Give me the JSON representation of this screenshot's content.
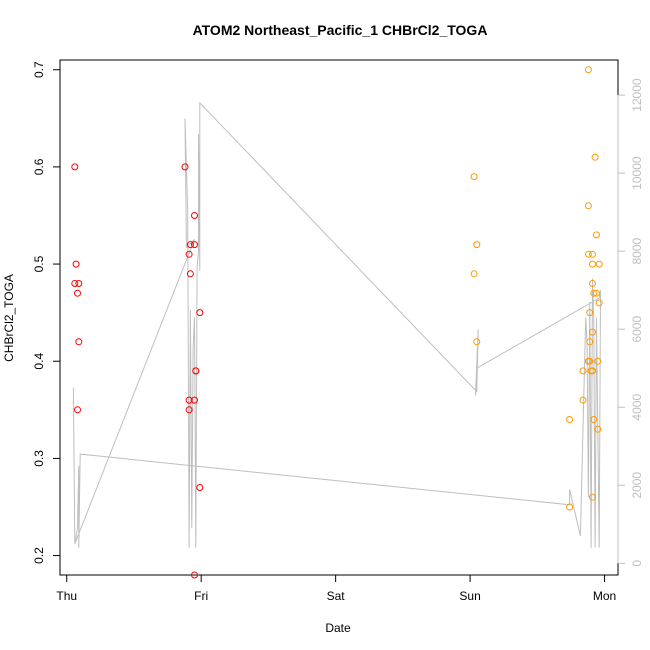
{
  "chart_data": {
    "type": "scatter",
    "title": "ATOM2 Northeast_Pacific_1 CHBrCl2_TOGA",
    "xlabel": "Date",
    "ylabel": "CHBrCl2_TOGA",
    "x_ticks": [
      "Thu",
      "Fri",
      "Sat",
      "Sun",
      "Mon"
    ],
    "y_ticks": [
      "0.2",
      "0.3",
      "0.4",
      "0.5",
      "0.6",
      "0.7"
    ],
    "y2_ticks": [
      "0",
      "2000",
      "4000",
      "6000",
      "8000",
      "10000",
      "12000"
    ],
    "xlim_days": [
      -0.05,
      4.1
    ],
    "ylim": [
      0.18,
      0.71
    ],
    "y2lim": [
      -300,
      12900
    ],
    "grid": false,
    "legend": "none",
    "colors": {
      "series_red": "#ff0000",
      "series_orange": "#ff9900",
      "altitude_line": "#bebebe",
      "axis": "#000000",
      "right_axis": "#bfbfbf"
    },
    "series": [
      {
        "color": "red",
        "points": [
          [
            0.06,
            0.6
          ],
          [
            0.06,
            0.48
          ],
          [
            0.07,
            0.5
          ],
          [
            0.09,
            0.48
          ],
          [
            0.08,
            0.35
          ],
          [
            0.08,
            0.47
          ],
          [
            0.09,
            0.42
          ],
          [
            0.88,
            0.6
          ],
          [
            0.91,
            0.51
          ],
          [
            0.92,
            0.52
          ],
          [
            0.92,
            0.49
          ],
          [
            0.91,
            0.36
          ],
          [
            0.91,
            0.35
          ],
          [
            0.95,
            0.52
          ],
          [
            0.95,
            0.55
          ],
          [
            0.95,
            0.36
          ],
          [
            0.96,
            0.39
          ],
          [
            0.96,
            0.39
          ],
          [
            0.95,
            0.18
          ],
          [
            0.99,
            0.45
          ],
          [
            0.99,
            0.27
          ]
        ]
      },
      {
        "color": "orange",
        "points": [
          [
            3.03,
            0.59
          ],
          [
            3.03,
            0.49
          ],
          [
            3.05,
            0.52
          ],
          [
            3.05,
            0.42
          ],
          [
            3.74,
            0.34
          ],
          [
            3.74,
            0.25
          ],
          [
            3.84,
            0.36
          ],
          [
            3.84,
            0.39
          ],
          [
            3.88,
            0.7
          ],
          [
            3.88,
            0.56
          ],
          [
            3.88,
            0.51
          ],
          [
            3.89,
            0.45
          ],
          [
            3.89,
            0.42
          ],
          [
            3.88,
            0.4
          ],
          [
            3.89,
            0.4
          ],
          [
            3.91,
            0.51
          ],
          [
            3.91,
            0.5
          ],
          [
            3.91,
            0.48
          ],
          [
            3.92,
            0.47
          ],
          [
            3.91,
            0.43
          ],
          [
            3.9,
            0.39
          ],
          [
            3.91,
            0.39
          ],
          [
            3.92,
            0.34
          ],
          [
            3.91,
            0.26
          ],
          [
            3.93,
            0.61
          ],
          [
            3.94,
            0.53
          ],
          [
            3.94,
            0.47
          ],
          [
            3.96,
            0.5
          ],
          [
            3.96,
            0.46
          ],
          [
            3.95,
            0.4
          ],
          [
            3.95,
            0.33
          ]
        ]
      }
    ],
    "altitude_line": [
      [
        0.05,
        4500
      ],
      [
        0.06,
        500
      ],
      [
        0.08,
        900
      ],
      [
        0.09,
        2500
      ],
      [
        0.09,
        400
      ],
      [
        0.1,
        2800
      ],
      [
        3.74,
        1500
      ],
      [
        3.74,
        1900
      ],
      [
        3.76,
        1600
      ],
      [
        3.82,
        700
      ],
      [
        3.86,
        6300
      ],
      [
        3.87,
        5600
      ],
      [
        3.88,
        1700
      ],
      [
        3.89,
        6700
      ],
      [
        3.9,
        400
      ],
      [
        3.91,
        7300
      ],
      [
        3.92,
        6200
      ],
      [
        3.93,
        400
      ],
      [
        3.94,
        6300
      ],
      [
        3.96,
        400
      ],
      [
        3.97,
        7000
      ],
      [
        3.96,
        6800
      ],
      [
        3.05,
        5000
      ],
      [
        3.04,
        4300
      ],
      [
        3.06,
        6000
      ],
      [
        3.05,
        4400
      ],
      [
        0.99,
        11800
      ],
      [
        0.99,
        7500
      ],
      [
        0.98,
        11000
      ],
      [
        0.98,
        8000
      ],
      [
        0.97,
        7600
      ],
      [
        0.96,
        400
      ],
      [
        0.95,
        6300
      ],
      [
        0.94,
        5500
      ],
      [
        0.93,
        900
      ],
      [
        0.92,
        6500
      ],
      [
        0.91,
        400
      ],
      [
        0.9,
        9000
      ],
      [
        0.88,
        11400
      ],
      [
        0.89,
        8100
      ],
      [
        0.95,
        8300
      ],
      [
        0.06,
        500
      ]
    ]
  }
}
